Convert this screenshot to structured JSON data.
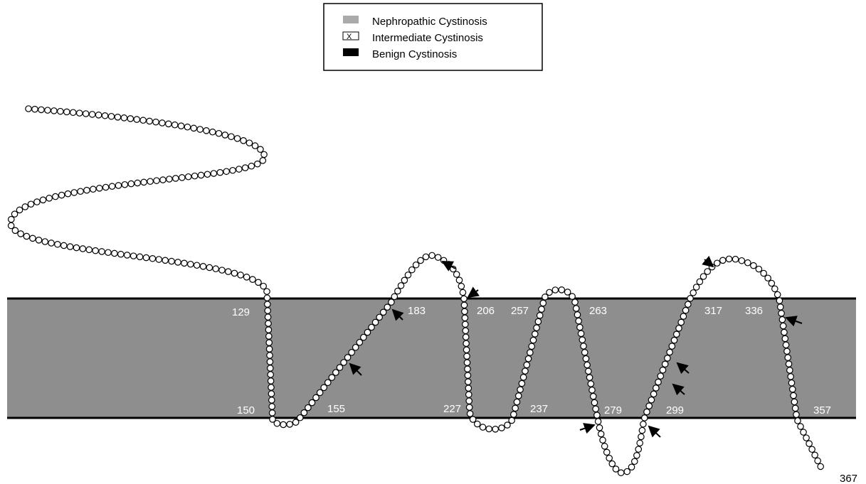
{
  "legend": {
    "items": [
      {
        "label": "Nephropathic Cystinosis"
      },
      {
        "label": "Intermediate Cystinosis"
      },
      {
        "label": "Benign Cystinosis"
      }
    ]
  },
  "residues": [
    {
      "label": "129"
    },
    {
      "label": "183"
    },
    {
      "label": "206"
    },
    {
      "label": "257"
    },
    {
      "label": "263"
    },
    {
      "label": "317"
    },
    {
      "label": "336"
    },
    {
      "label": "150"
    },
    {
      "label": "155"
    },
    {
      "label": "227"
    },
    {
      "label": "237"
    },
    {
      "label": "279"
    },
    {
      "label": "299"
    },
    {
      "label": "357"
    },
    {
      "label": "367"
    }
  ]
}
